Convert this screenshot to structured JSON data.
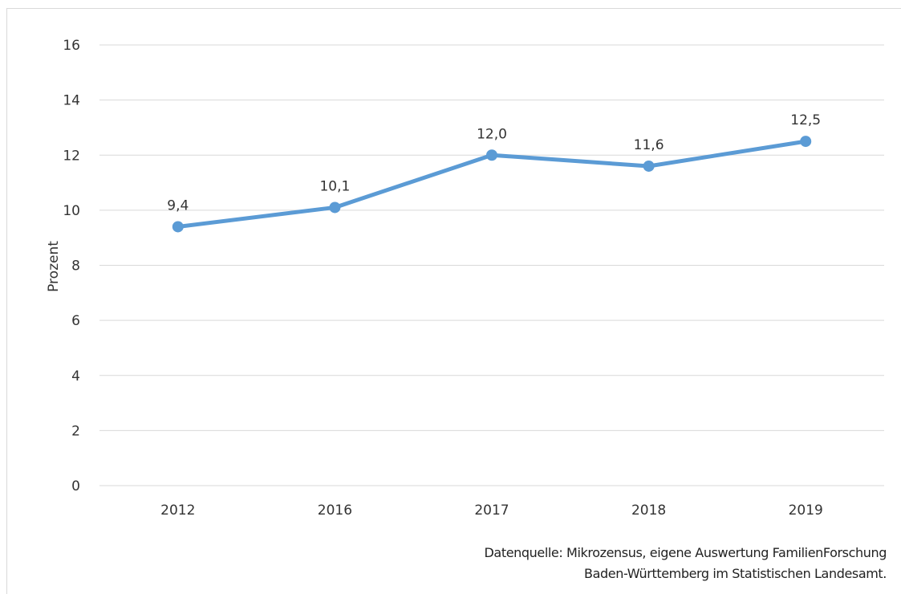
{
  "chart_data": {
    "type": "line",
    "categories": [
      "2012",
      "2016",
      "2017",
      "2018",
      "2019"
    ],
    "series": [
      {
        "values": [
          9.4,
          10.1,
          12.0,
          11.6,
          12.5
        ],
        "color": "#5b9bd5"
      }
    ],
    "data_labels": [
      "9,4",
      "10,1",
      "12,0",
      "11,6",
      "12,5"
    ],
    "ylabel": "Prozent",
    "ylim": [
      0,
      16
    ],
    "yticks": [
      0,
      2,
      4,
      6,
      8,
      10,
      12,
      14,
      16
    ],
    "grid": true,
    "gridline_color": "#d9d9d9"
  },
  "source": {
    "line1": "Datenquelle: Mikrozensus, eigene Auswertung FamilienForschung",
    "line2": "Baden-Württemberg im Statistischen Landesamt."
  }
}
